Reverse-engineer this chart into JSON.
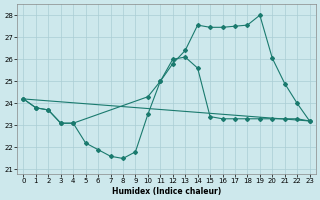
{
  "xlabel": "Humidex (Indice chaleur)",
  "background_color": "#cde8ec",
  "grid_color": "#aacdd4",
  "line_color": "#1a7a6e",
  "xlim": [
    -0.5,
    23.5
  ],
  "ylim": [
    20.8,
    28.5
  ],
  "yticks": [
    21,
    22,
    23,
    24,
    25,
    26,
    27,
    28
  ],
  "xticks": [
    0,
    1,
    2,
    3,
    4,
    5,
    6,
    7,
    8,
    9,
    10,
    11,
    12,
    13,
    14,
    15,
    16,
    17,
    18,
    19,
    20,
    21,
    22,
    23
  ],
  "line1_x": [
    0,
    1,
    2,
    3,
    4,
    5,
    6,
    7,
    8,
    9,
    10,
    11,
    12,
    13,
    14,
    15,
    16,
    17,
    18,
    19,
    20,
    21,
    22,
    23
  ],
  "line1_y": [
    24.2,
    23.8,
    23.7,
    23.1,
    23.1,
    22.2,
    21.9,
    21.6,
    21.5,
    21.8,
    23.5,
    25.0,
    26.0,
    26.1,
    25.6,
    23.4,
    23.3,
    23.3,
    23.3,
    23.3,
    23.3,
    23.3,
    23.3,
    23.2
  ],
  "line2_x": [
    0,
    1,
    2,
    3,
    4,
    10,
    11,
    12,
    13,
    14,
    15,
    16,
    17,
    18,
    19,
    20,
    21,
    22,
    23
  ],
  "line2_y": [
    24.2,
    23.8,
    23.7,
    23.1,
    23.1,
    24.3,
    25.0,
    25.8,
    26.4,
    27.55,
    27.45,
    27.45,
    27.5,
    27.55,
    28.0,
    26.05,
    24.9,
    24.0,
    23.2
  ],
  "line3_x": [
    0,
    23
  ],
  "line3_y": [
    24.2,
    23.2
  ]
}
